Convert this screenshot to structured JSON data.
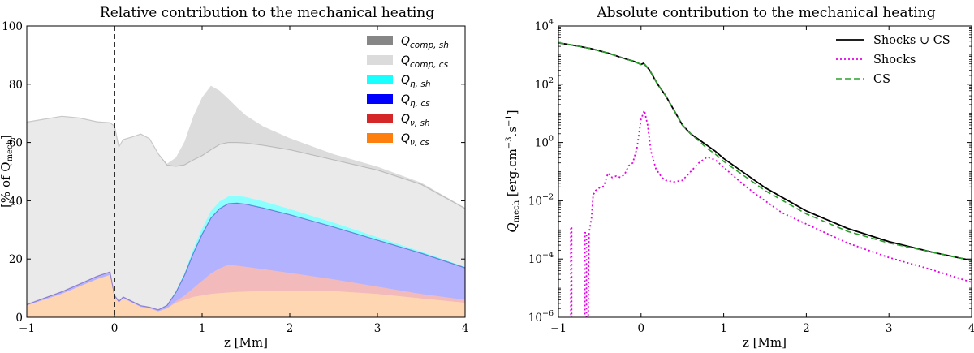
{
  "chart_data": [
    {
      "type": "area",
      "title": "Relative contribution to the mechanical heating",
      "xlabel": "z [Mm]",
      "ylabel": "[% of Q",
      "ylabel_sub": "mech",
      "ylabel_suffix": "]",
      "xlim": [
        -1,
        4
      ],
      "ylim": [
        0,
        100
      ],
      "xticks": [
        "−1",
        "0",
        "1",
        "2",
        "3",
        "4"
      ],
      "yticks": [
        "0",
        "20",
        "40",
        "60",
        "80",
        "100"
      ],
      "vline_x": 0,
      "x": [
        -1.0,
        -0.8,
        -0.6,
        -0.4,
        -0.2,
        -0.05,
        0.0,
        0.05,
        0.1,
        0.2,
        0.3,
        0.4,
        0.5,
        0.6,
        0.7,
        0.8,
        0.9,
        1.0,
        1.1,
        1.2,
        1.3,
        1.4,
        1.5,
        1.7,
        2.0,
        2.5,
        3.0,
        3.5,
        4.0
      ],
      "series": [
        {
          "name": "Q_{ν,cs}",
          "label_main": "Q",
          "label_sub": "ν, cs",
          "color": "#ff7f0e",
          "values": [
            4,
            6,
            8,
            10.5,
            13,
            14.5,
            7,
            5,
            6.5,
            5,
            3.5,
            3,
            2,
            3,
            5,
            6,
            7,
            7.5,
            8,
            8.3,
            8.5,
            8.7,
            8.8,
            9,
            9.2,
            9,
            8,
            6.5,
            5
          ]
        },
        {
          "name": "Q_{ν,sh}",
          "label_main": "Q",
          "label_sub": "ν, sh",
          "color": "#d62728",
          "values": [
            0.1,
            0.1,
            0.1,
            0.1,
            0.1,
            0.1,
            0.1,
            0.1,
            0.1,
            0.1,
            0.1,
            0.1,
            0.1,
            0.1,
            0.5,
            1.5,
            3,
            5,
            7,
            8.5,
            9.5,
            9,
            8.5,
            7.5,
            6,
            4,
            2.5,
            1.5,
            1
          ]
        },
        {
          "name": "Q_{η,cs}",
          "label_main": "Q",
          "label_sub": "η, cs",
          "color": "#0000ff",
          "values": [
            0.3,
            0.5,
            0.7,
            0.8,
            1,
            1,
            0.5,
            0.4,
            0.4,
            0.4,
            0.4,
            0.4,
            0.5,
            1,
            3,
            7,
            12,
            16,
            19,
            20.5,
            21,
            21.5,
            21.5,
            21,
            20,
            18,
            16,
            14,
            11
          ]
        },
        {
          "name": "Q_{η,sh}",
          "label_main": "Q",
          "label_sub": "η, sh",
          "color": "#00ffff",
          "values": [
            0,
            0,
            0,
            0,
            0,
            0,
            0,
            0,
            0,
            0,
            0,
            0,
            0,
            0.1,
            0.3,
            0.8,
            1.5,
            2,
            2.5,
            2.5,
            2.5,
            2.5,
            2.5,
            2.3,
            2,
            1.5,
            1,
            0.6,
            0.3
          ]
        },
        {
          "name": "Q_{comp,cs}",
          "label_main": "Q",
          "label_sub": "comp, cs",
          "color": "#d9d9d9",
          "values": [
            62.6,
            61.4,
            60.2,
            57,
            53,
            51.2,
            58,
            53,
            54,
            56.4,
            58.9,
            57.8,
            53.5,
            48,
            43,
            37,
            30.5,
            25,
            21,
            19.5,
            18.5,
            18.3,
            18.5,
            19.2,
            20.3,
            21.5,
            23,
            23,
            20
          ]
        },
        {
          "name": "Q_{comp,sh}",
          "label_main": "Q",
          "label_sub": "comp, sh",
          "color": "#808080",
          "values": [
            0,
            0,
            0,
            0,
            0,
            0,
            0,
            0,
            0,
            0,
            0,
            0,
            0,
            0.5,
            3,
            8,
            15,
            20,
            22,
            18.5,
            15,
            12,
            9.5,
            6.5,
            4,
            2,
            1.2,
            0.6,
            0.3
          ]
        }
      ],
      "legend_position": "top-right",
      "legend_order": [
        "Q_{comp,sh}",
        "Q_{comp,cs}",
        "Q_{η,sh}",
        "Q_{η,cs}",
        "Q_{ν,sh}",
        "Q_{ν,cs}"
      ]
    },
    {
      "type": "line",
      "title": "Absolute contribution to the mechanical heating",
      "xlabel": "z [Mm]",
      "ylabel_main": "Q",
      "ylabel_sub": "mech",
      "ylabel_units": " [erg.cm",
      "ylabel_exp1": "−3",
      "ylabel_mid": ".s",
      "ylabel_exp2": "−1",
      "ylabel_end": "]",
      "xlim": [
        -1,
        4
      ],
      "ylim_log10": [
        -6,
        4
      ],
      "xticks": [
        "−1",
        "0",
        "1",
        "2",
        "3",
        "4"
      ],
      "yticks": [
        {
          "base": "10",
          "exp": "−6",
          "log": -6
        },
        {
          "base": "10",
          "exp": "−4",
          "log": -4
        },
        {
          "base": "10",
          "exp": "−2",
          "log": -2
        },
        {
          "base": "10",
          "exp": "0",
          "log": 0
        },
        {
          "base": "10",
          "exp": "2",
          "log": 2
        },
        {
          "base": "10",
          "exp": "4",
          "log": 4
        }
      ],
      "log_scale_y": true,
      "legend_position": "top-right",
      "series": [
        {
          "name": "Shocks ∪ CS",
          "color": "#000000",
          "style": "solid",
          "x": [
            -1.0,
            -0.8,
            -0.6,
            -0.4,
            -0.2,
            -0.1,
            0.0,
            0.03,
            0.1,
            0.2,
            0.3,
            0.4,
            0.5,
            0.6,
            0.7,
            0.8,
            0.9,
            1.0,
            1.2,
            1.5,
            2.0,
            2.5,
            3.0,
            3.5,
            4.0
          ],
          "log10_y": [
            3.42,
            3.33,
            3.22,
            3.07,
            2.88,
            2.8,
            2.68,
            2.72,
            2.5,
            2.0,
            1.6,
            1.1,
            0.6,
            0.3,
            0.1,
            -0.1,
            -0.3,
            -0.55,
            -0.95,
            -1.55,
            -2.35,
            -2.95,
            -3.4,
            -3.75,
            -4.05
          ]
        },
        {
          "name": "Shocks",
          "color": "#e600e6",
          "style": "dotted",
          "x": [
            -0.85,
            -0.85,
            -0.84,
            -0.84,
            -0.82,
            -0.82,
            -0.8,
            -0.7,
            -0.68,
            -0.68,
            -0.66,
            -0.66,
            -0.64,
            -0.64,
            -0.63,
            -0.6,
            -0.58,
            -0.55,
            -0.5,
            -0.45,
            -0.4,
            -0.35,
            -0.3,
            -0.25,
            -0.2,
            -0.15,
            -0.1,
            -0.05,
            0.0,
            0.04,
            0.08,
            0.12,
            0.18,
            0.25,
            0.3,
            0.4,
            0.5,
            0.6,
            0.7,
            0.8,
            0.9,
            1.0,
            1.1,
            1.2,
            1.4,
            1.7,
            2.0,
            2.5,
            3.0,
            3.5,
            4.0
          ],
          "log10_y": [
            -6.2,
            -2.9,
            -2.9,
            -6.2,
            -6.2,
            -6.2,
            -6.2,
            -6.2,
            -6.2,
            -3.1,
            -3.1,
            -6.2,
            -6.2,
            -6.2,
            -3.1,
            -2.6,
            -1.8,
            -1.65,
            -1.55,
            -1.5,
            -1.05,
            -1.2,
            -1.15,
            -1.2,
            -1.1,
            -0.8,
            -0.7,
            -0.2,
            0.8,
            1.1,
            0.6,
            -0.3,
            -0.9,
            -1.2,
            -1.3,
            -1.35,
            -1.3,
            -1.0,
            -0.7,
            -0.5,
            -0.6,
            -0.85,
            -1.1,
            -1.35,
            -1.8,
            -2.4,
            -2.8,
            -3.45,
            -3.95,
            -4.35,
            -4.8
          ]
        },
        {
          "name": "CS",
          "color": "#2ca02c",
          "style": "dashed",
          "x": [
            -1.0,
            -0.8,
            -0.6,
            -0.4,
            -0.2,
            -0.1,
            0.0,
            0.03,
            0.1,
            0.2,
            0.3,
            0.4,
            0.5,
            0.6,
            0.7,
            0.8,
            0.9,
            1.0,
            1.2,
            1.5,
            2.0,
            2.5,
            3.0,
            3.5,
            4.0
          ],
          "log10_y": [
            3.42,
            3.33,
            3.22,
            3.07,
            2.88,
            2.8,
            2.68,
            2.72,
            2.5,
            2.0,
            1.6,
            1.1,
            0.6,
            0.3,
            0.05,
            -0.2,
            -0.4,
            -0.65,
            -1.05,
            -1.65,
            -2.45,
            -3.05,
            -3.45,
            -3.75,
            -4.05
          ]
        }
      ]
    }
  ]
}
